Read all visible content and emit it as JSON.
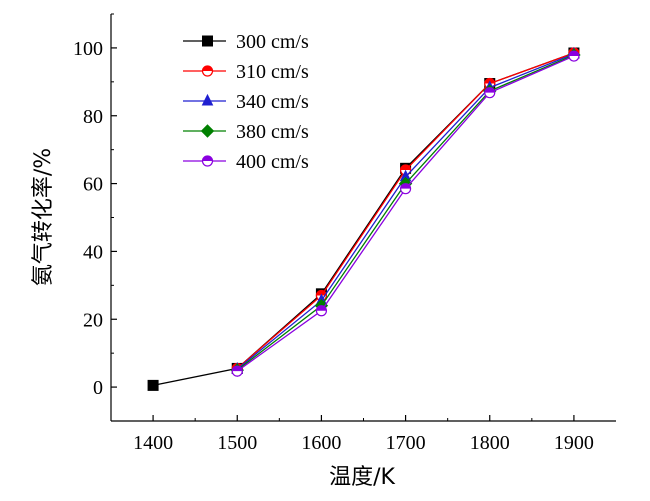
{
  "chart_data": {
    "type": "line",
    "title": "",
    "xlabel": "温度/K",
    "ylabel": "氨气转化率/%",
    "xlim": [
      1350,
      1950
    ],
    "ylim": [
      -10,
      110
    ],
    "xticks": [
      1400,
      1500,
      1600,
      1700,
      1800,
      1900
    ],
    "yticks": [
      0,
      20,
      40,
      60,
      80,
      100
    ],
    "grid": false,
    "legend_position": "top-left",
    "series": [
      {
        "name": "300 cm/s",
        "color": "#000000",
        "marker": "square",
        "x": [
          1400,
          1500,
          1600,
          1700,
          1800,
          1900
        ],
        "y": [
          0.5,
          5.5,
          27.5,
          64.5,
          89.5,
          98.5
        ]
      },
      {
        "name": "310 cm/s",
        "color": "#ff0000",
        "marker": "circle",
        "x": [
          1500,
          1600,
          1700,
          1800,
          1900
        ],
        "y": [
          5.5,
          27.0,
          64.0,
          89.5,
          98.5
        ]
      },
      {
        "name": "340 cm/s",
        "color": "#1f1fd0",
        "marker": "triangle",
        "x": [
          1500,
          1600,
          1700,
          1800,
          1900
        ],
        "y": [
          5.3,
          25.5,
          62.0,
          88.3,
          98.2
        ]
      },
      {
        "name": "380 cm/s",
        "color": "#008000",
        "marker": "diamond",
        "x": [
          1500,
          1600,
          1700,
          1800,
          1900
        ],
        "y": [
          5.0,
          24.0,
          60.0,
          87.3,
          97.9
        ]
      },
      {
        "name": "400 cm/s",
        "color": "#8a00e0",
        "marker": "circle-half",
        "x": [
          1500,
          1600,
          1700,
          1800,
          1900
        ],
        "y": [
          4.7,
          22.5,
          58.5,
          86.8,
          97.6
        ]
      }
    ]
  }
}
